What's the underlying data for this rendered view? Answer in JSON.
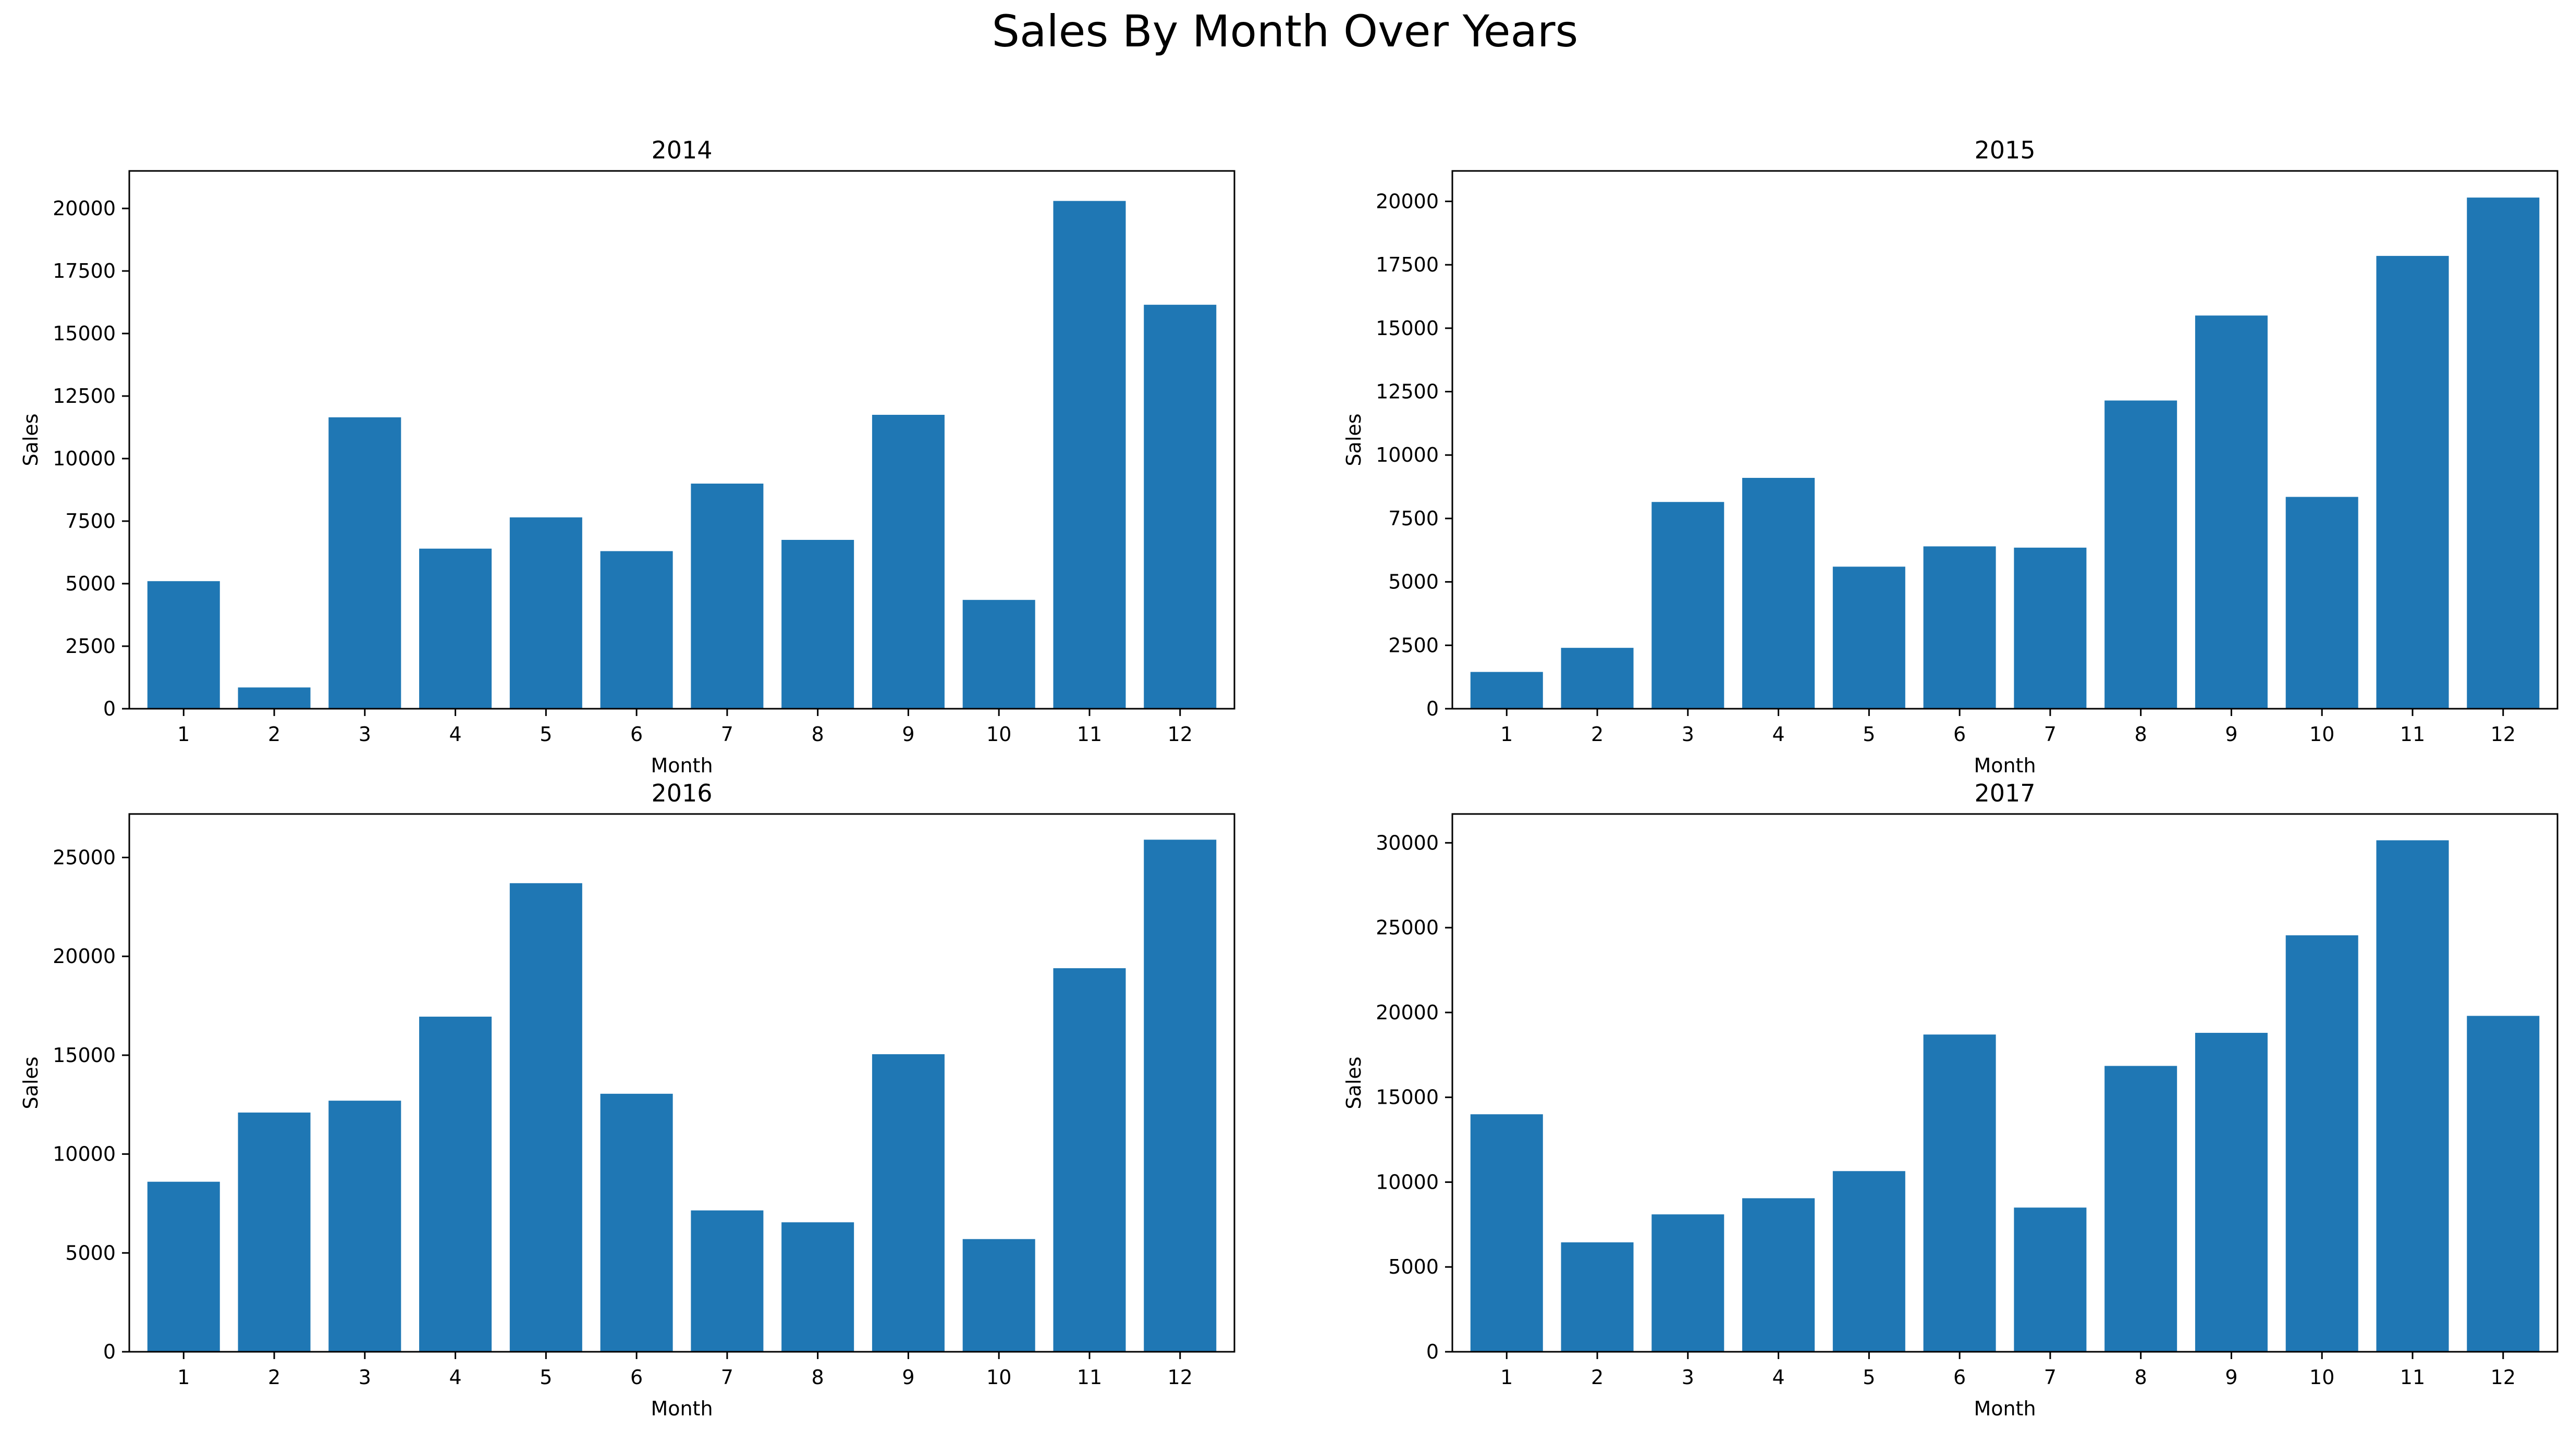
{
  "suptitle": "Sales By Month Over Years",
  "colors": {
    "bar": "#1f77b4",
    "axis": "#000000",
    "background": "#ffffff"
  },
  "chart_data": [
    {
      "type": "bar",
      "title": "2014",
      "xlabel": "Month",
      "ylabel": "Sales",
      "categories": [
        "1",
        "2",
        "3",
        "4",
        "5",
        "6",
        "7",
        "8",
        "9",
        "10",
        "11",
        "12"
      ],
      "values": [
        5100,
        850,
        11650,
        6400,
        7650,
        6300,
        9000,
        6750,
        11750,
        4350,
        20300,
        16150
      ],
      "ylim": [
        0,
        21500
      ],
      "yticks": [
        0,
        2500,
        5000,
        7500,
        10000,
        12500,
        15000,
        17500,
        20000
      ],
      "grid": false,
      "legend": "none"
    },
    {
      "type": "bar",
      "title": "2015",
      "xlabel": "Month",
      "ylabel": "Sales",
      "categories": [
        "1",
        "2",
        "3",
        "4",
        "5",
        "6",
        "7",
        "8",
        "9",
        "10",
        "11",
        "12"
      ],
      "values": [
        1450,
        2400,
        8150,
        9100,
        5600,
        6400,
        6350,
        12150,
        15500,
        8350,
        17850,
        20150
      ],
      "ylim": [
        0,
        21200
      ],
      "yticks": [
        0,
        2500,
        5000,
        7500,
        10000,
        12500,
        15000,
        17500,
        20000
      ],
      "grid": false,
      "legend": "none"
    },
    {
      "type": "bar",
      "title": "2016",
      "xlabel": "Month",
      "ylabel": "Sales",
      "categories": [
        "1",
        "2",
        "3",
        "4",
        "5",
        "6",
        "7",
        "8",
        "9",
        "10",
        "11",
        "12"
      ],
      "values": [
        8600,
        12100,
        12700,
        16950,
        23700,
        13050,
        7150,
        6550,
        15050,
        5700,
        19400,
        25900
      ],
      "ylim": [
        0,
        27200
      ],
      "yticks": [
        0,
        5000,
        10000,
        15000,
        20000,
        25000
      ],
      "grid": false,
      "legend": "none"
    },
    {
      "type": "bar",
      "title": "2017",
      "xlabel": "Month",
      "ylabel": "Sales",
      "categories": [
        "1",
        "2",
        "3",
        "4",
        "5",
        "6",
        "7",
        "8",
        "9",
        "10",
        "11",
        "12"
      ],
      "values": [
        14000,
        6450,
        8100,
        9050,
        10650,
        18700,
        8500,
        16850,
        18800,
        24550,
        30150,
        19800
      ],
      "ylim": [
        0,
        31700
      ],
      "yticks": [
        0,
        5000,
        10000,
        15000,
        20000,
        25000,
        30000
      ],
      "grid": false,
      "legend": "none"
    }
  ]
}
